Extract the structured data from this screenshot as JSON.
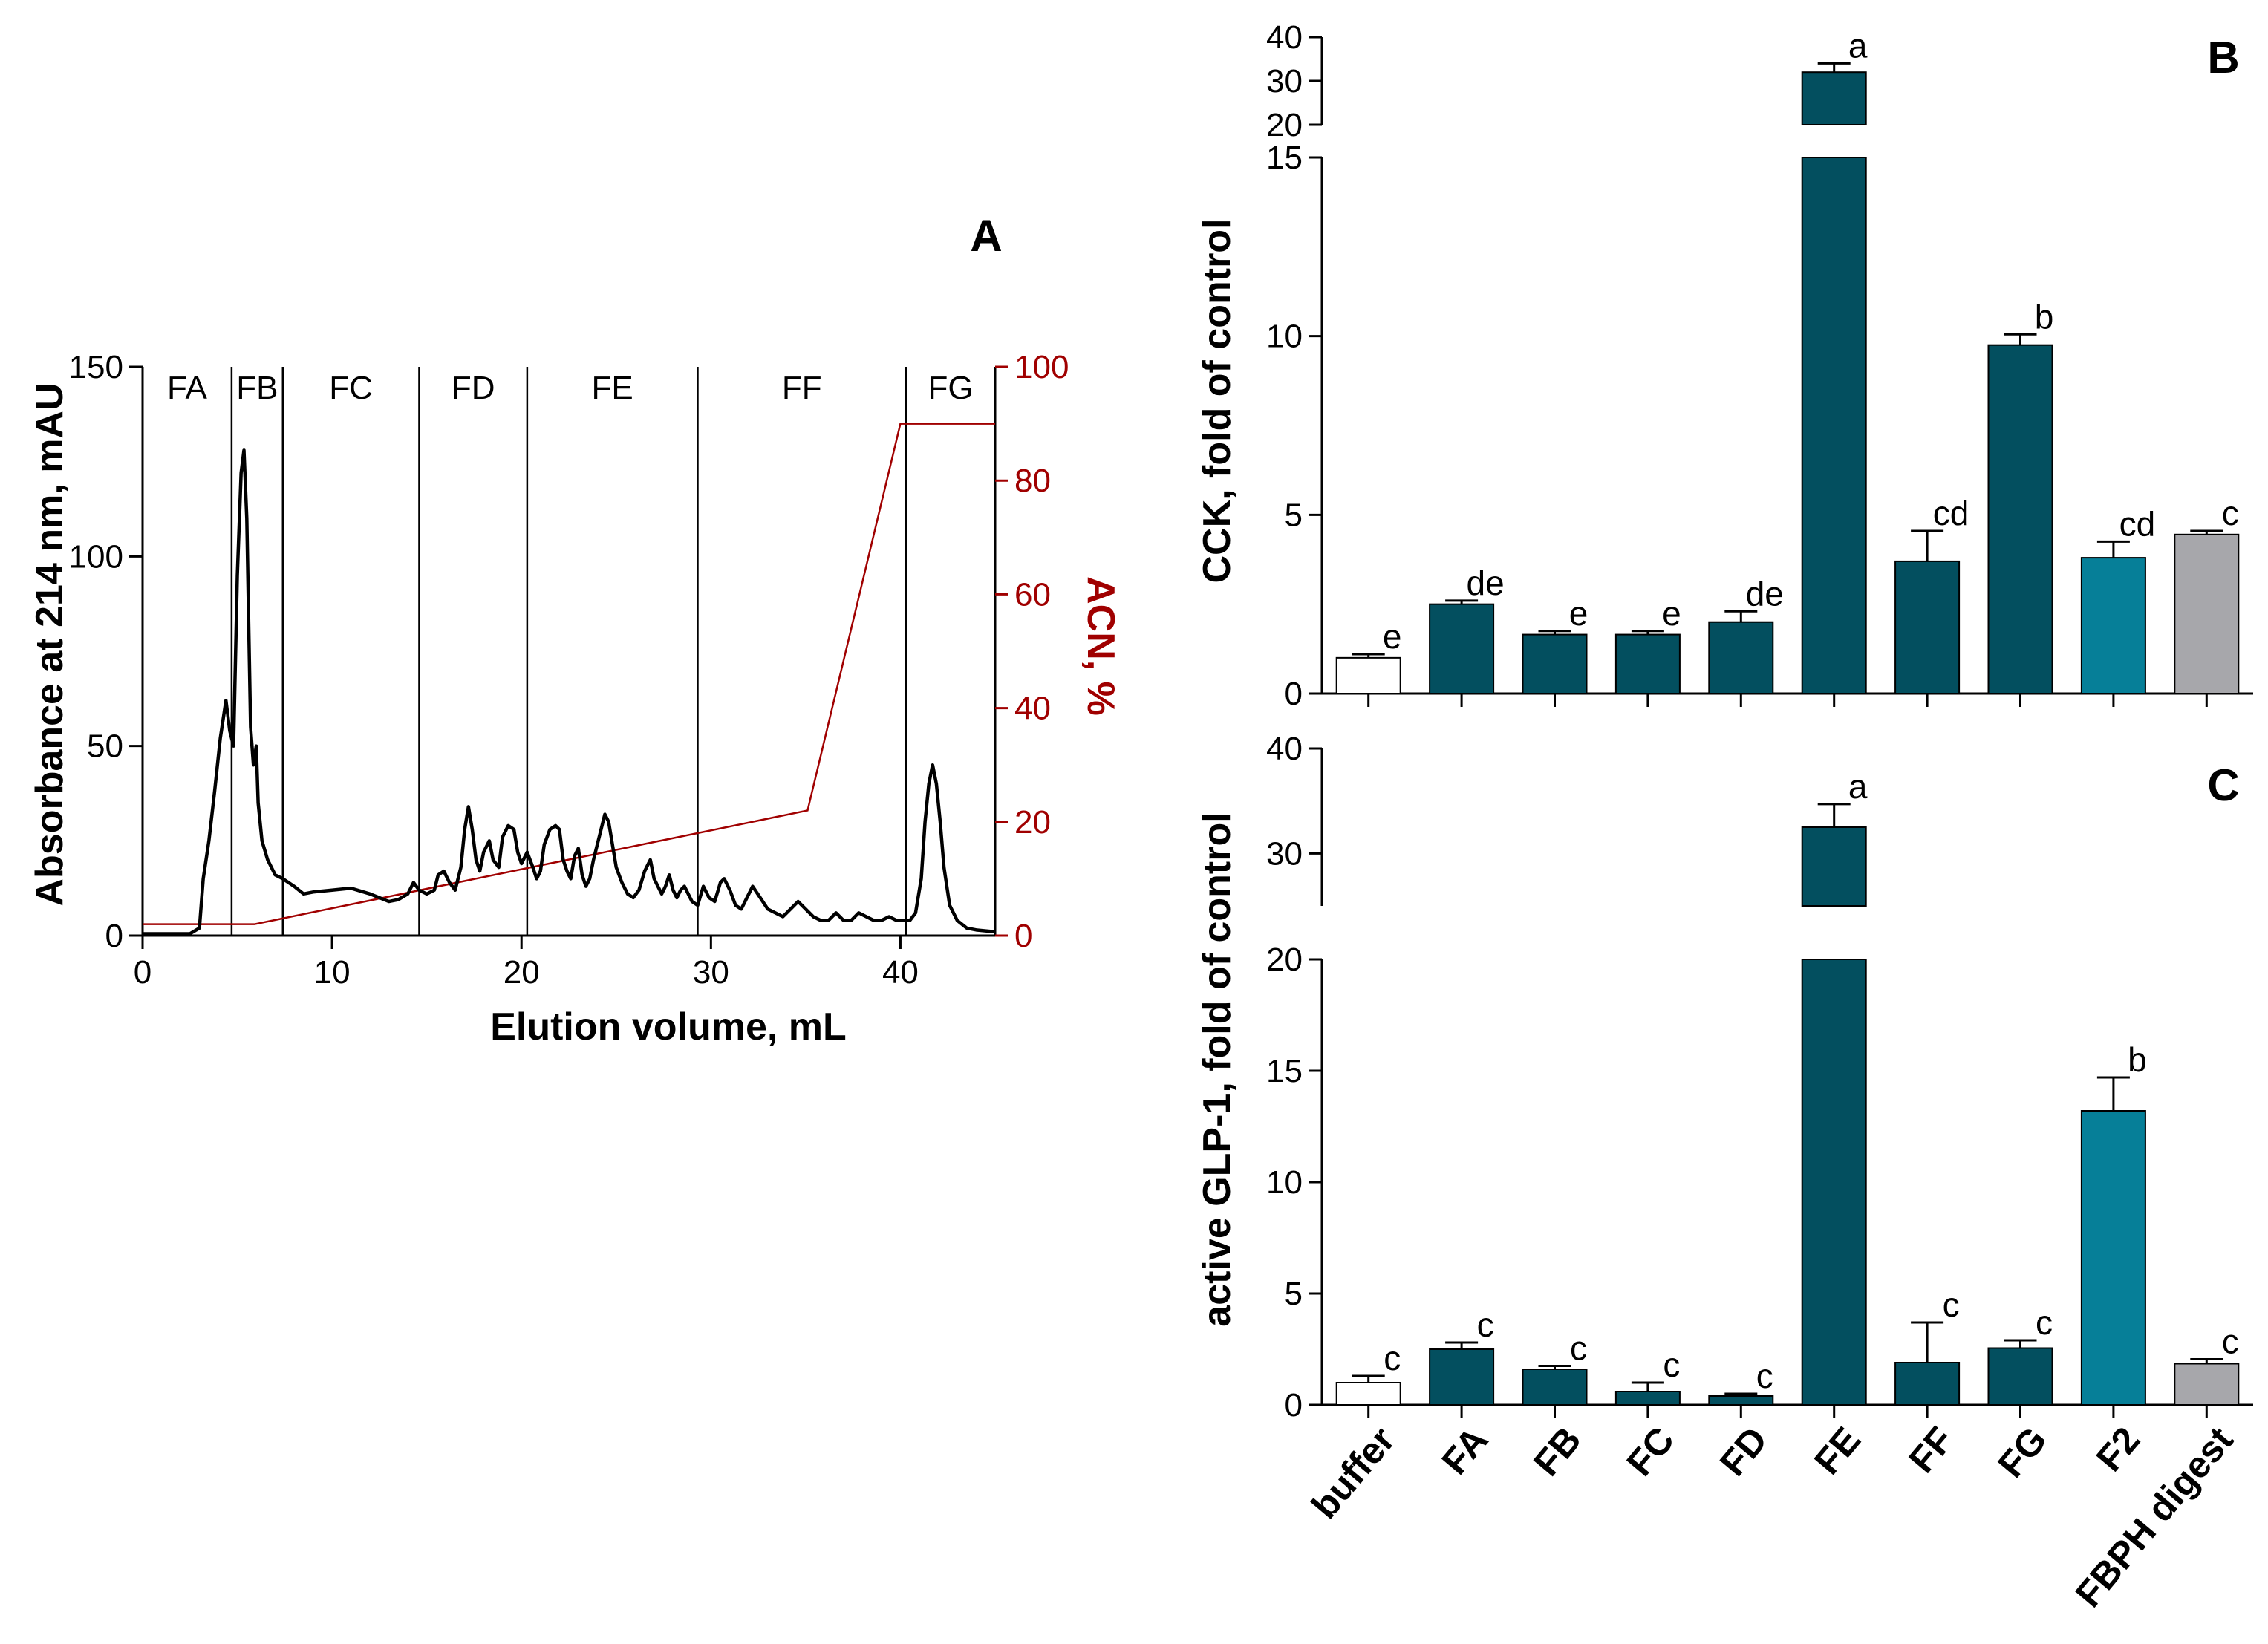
{
  "chart_data": [
    {
      "panel": "A",
      "type": "line",
      "xlabel": "Elution volume, mL",
      "ylabel": "Absorbance at 214 nm, mAU",
      "y2label": "ACN, %",
      "xlim": [
        0,
        45
      ],
      "ylim": [
        0,
        150
      ],
      "y2lim": [
        0,
        100
      ],
      "xticks": [
        "0",
        "10",
        "20",
        "30",
        "40"
      ],
      "yticks": [
        "0",
        "50",
        "100",
        "150"
      ],
      "y2ticks": [
        "0",
        "20",
        "40",
        "60",
        "80",
        "100"
      ],
      "fractions": [
        {
          "label": "FA",
          "start": 0,
          "end": 4.7
        },
        {
          "label": "FB",
          "start": 4.7,
          "end": 7.4
        },
        {
          "label": "FC",
          "start": 7.4,
          "end": 14.6
        },
        {
          "label": "FD",
          "start": 14.6,
          "end": 20.3
        },
        {
          "label": "FE",
          "start": 20.3,
          "end": 29.3
        },
        {
          "label": "FF",
          "start": 29.3,
          "end": 40.3
        },
        {
          "label": "FG",
          "start": 40.3,
          "end": 45
        }
      ],
      "series": [
        {
          "name": "Absorbance at 214 nm",
          "color": "#000000",
          "points": [
            [
              0,
              0.5
            ],
            [
              2.5,
              0.5
            ],
            [
              3.0,
              2
            ],
            [
              3.2,
              15
            ],
            [
              3.5,
              25
            ],
            [
              3.8,
              38
            ],
            [
              4.1,
              52
            ],
            [
              4.4,
              62
            ],
            [
              4.6,
              54
            ],
            [
              4.8,
              50
            ],
            [
              5.0,
              95
            ],
            [
              5.2,
              122
            ],
            [
              5.35,
              128
            ],
            [
              5.5,
              110
            ],
            [
              5.7,
              55
            ],
            [
              5.85,
              45
            ],
            [
              6.0,
              50
            ],
            [
              6.1,
              35
            ],
            [
              6.3,
              25
            ],
            [
              6.6,
              20
            ],
            [
              7.0,
              16
            ],
            [
              7.4,
              15
            ],
            [
              8,
              13
            ],
            [
              8.5,
              11
            ],
            [
              9,
              11.5
            ],
            [
              10,
              12
            ],
            [
              11,
              12.5
            ],
            [
              12,
              11
            ],
            [
              12.5,
              10
            ],
            [
              13,
              9
            ],
            [
              13.5,
              9.5
            ],
            [
              14,
              11
            ],
            [
              14.3,
              14
            ],
            [
              14.6,
              12
            ],
            [
              15,
              11
            ],
            [
              15.4,
              12
            ],
            [
              15.6,
              16
            ],
            [
              15.9,
              17
            ],
            [
              16.2,
              14
            ],
            [
              16.5,
              12
            ],
            [
              16.8,
              18
            ],
            [
              17.0,
              28
            ],
            [
              17.2,
              34
            ],
            [
              17.4,
              28
            ],
            [
              17.6,
              20
            ],
            [
              17.8,
              17
            ],
            [
              18.0,
              22
            ],
            [
              18.3,
              25
            ],
            [
              18.5,
              20
            ],
            [
              18.8,
              18
            ],
            [
              19.0,
              26
            ],
            [
              19.3,
              29
            ],
            [
              19.6,
              28
            ],
            [
              19.8,
              22
            ],
            [
              20.0,
              19
            ],
            [
              20.3,
              22
            ],
            [
              20.6,
              18
            ],
            [
              20.8,
              15
            ],
            [
              21.0,
              17
            ],
            [
              21.2,
              24
            ],
            [
              21.5,
              28
            ],
            [
              21.8,
              29
            ],
            [
              22.0,
              28
            ],
            [
              22.2,
              20
            ],
            [
              22.4,
              17
            ],
            [
              22.6,
              15
            ],
            [
              22.8,
              21
            ],
            [
              23.0,
              23
            ],
            [
              23.2,
              16
            ],
            [
              23.4,
              13
            ],
            [
              23.6,
              15
            ],
            [
              23.8,
              20
            ],
            [
              24.0,
              24
            ],
            [
              24.2,
              28
            ],
            [
              24.4,
              32
            ],
            [
              24.6,
              30
            ],
            [
              24.8,
              24
            ],
            [
              25.0,
              18
            ],
            [
              25.3,
              14
            ],
            [
              25.6,
              11
            ],
            [
              25.9,
              10
            ],
            [
              26.2,
              12
            ],
            [
              26.5,
              17
            ],
            [
              26.8,
              20
            ],
            [
              27.0,
              15
            ],
            [
              27.2,
              13
            ],
            [
              27.4,
              11
            ],
            [
              27.6,
              13
            ],
            [
              27.8,
              16
            ],
            [
              28.0,
              12
            ],
            [
              28.2,
              10
            ],
            [
              28.4,
              12
            ],
            [
              28.6,
              13
            ],
            [
              28.8,
              11
            ],
            [
              29.0,
              9
            ],
            [
              29.3,
              8
            ],
            [
              29.6,
              13
            ],
            [
              29.9,
              10
            ],
            [
              30.2,
              9
            ],
            [
              30.5,
              14
            ],
            [
              30.7,
              15
            ],
            [
              31.0,
              12
            ],
            [
              31.3,
              8
            ],
            [
              31.6,
              7
            ],
            [
              31.9,
              10
            ],
            [
              32.2,
              13
            ],
            [
              32.6,
              10
            ],
            [
              33,
              7
            ],
            [
              33.4,
              6
            ],
            [
              33.8,
              5
            ],
            [
              34.2,
              7
            ],
            [
              34.6,
              9
            ],
            [
              35,
              7
            ],
            [
              35.4,
              5
            ],
            [
              35.8,
              4
            ],
            [
              36.2,
              4
            ],
            [
              36.6,
              6
            ],
            [
              37,
              4
            ],
            [
              37.4,
              4
            ],
            [
              37.8,
              6
            ],
            [
              38.2,
              5
            ],
            [
              38.6,
              4
            ],
            [
              39,
              4
            ],
            [
              39.4,
              5
            ],
            [
              39.8,
              4
            ],
            [
              40.2,
              4
            ],
            [
              40.5,
              4
            ],
            [
              40.8,
              6
            ],
            [
              41.1,
              15
            ],
            [
              41.3,
              30
            ],
            [
              41.5,
              40
            ],
            [
              41.7,
              45
            ],
            [
              41.9,
              40
            ],
            [
              42.1,
              30
            ],
            [
              42.3,
              18
            ],
            [
              42.6,
              8
            ],
            [
              43.0,
              4
            ],
            [
              43.5,
              2
            ],
            [
              44.0,
              1.5
            ],
            [
              45,
              1
            ]
          ]
        },
        {
          "name": "ACN, %",
          "axis": "y2",
          "color": "#a00000",
          "points": [
            [
              0,
              2
            ],
            [
              5.9,
              2
            ],
            [
              35.1,
              22
            ],
            [
              40.0,
              90
            ],
            [
              45,
              90
            ]
          ]
        }
      ]
    },
    {
      "panel": "B",
      "type": "bar",
      "ylabel": "CCK, fold of control",
      "ylim_lower": [
        0,
        15
      ],
      "ylim_upper": [
        20,
        40
      ],
      "yticks_lower": [
        "0",
        "5",
        "10",
        "15"
      ],
      "yticks_upper": [
        "20",
        "30",
        "40"
      ],
      "categories": [
        "buffer",
        "FA",
        "FB",
        "FC",
        "FD",
        "FE",
        "FF",
        "FG",
        "F2",
        "FBPH digest"
      ],
      "values": [
        1.0,
        2.5,
        1.65,
        1.65,
        2.0,
        32,
        3.7,
        9.75,
        3.8,
        4.45
      ],
      "errors": [
        0.1,
        0.1,
        0.1,
        0.1,
        0.3,
        2,
        0.85,
        0.3,
        0.45,
        0.1
      ],
      "letters": [
        "e",
        "de",
        "e",
        "e",
        "de",
        "a",
        "cd",
        "b",
        "cd",
        "c"
      ]
    },
    {
      "panel": "C",
      "type": "bar",
      "ylabel": "active GLP-1, fold of control",
      "ylim_lower": [
        0,
        20
      ],
      "ylim_upper": [
        25,
        40
      ],
      "yticks_lower": [
        "0",
        "5",
        "10",
        "15",
        "20"
      ],
      "yticks_upper": [
        "30",
        "40"
      ],
      "categories": [
        "buffer",
        "FA",
        "FB",
        "FC",
        "FD",
        "FE",
        "FF",
        "FG",
        "F2",
        "FBPH digest"
      ],
      "values": [
        1.0,
        2.5,
        1.6,
        0.6,
        0.4,
        32.5,
        1.9,
        2.55,
        13.2,
        1.85
      ],
      "errors": [
        0.3,
        0.3,
        0.15,
        0.4,
        0.1,
        2.2,
        1.8,
        0.35,
        1.5,
        0.2
      ],
      "letters": [
        "c",
        "c",
        "c",
        "c",
        "c",
        "a",
        "c",
        "c",
        "b",
        "c"
      ]
    }
  ],
  "panel_letters": {
    "a": "A",
    "b": "B",
    "c": "C"
  },
  "colors": {
    "dark_teal": "#034f5f",
    "light_teal": "#067f98",
    "gray": "#a7a7ab",
    "white": "#ffffff",
    "red": "#a00000"
  }
}
